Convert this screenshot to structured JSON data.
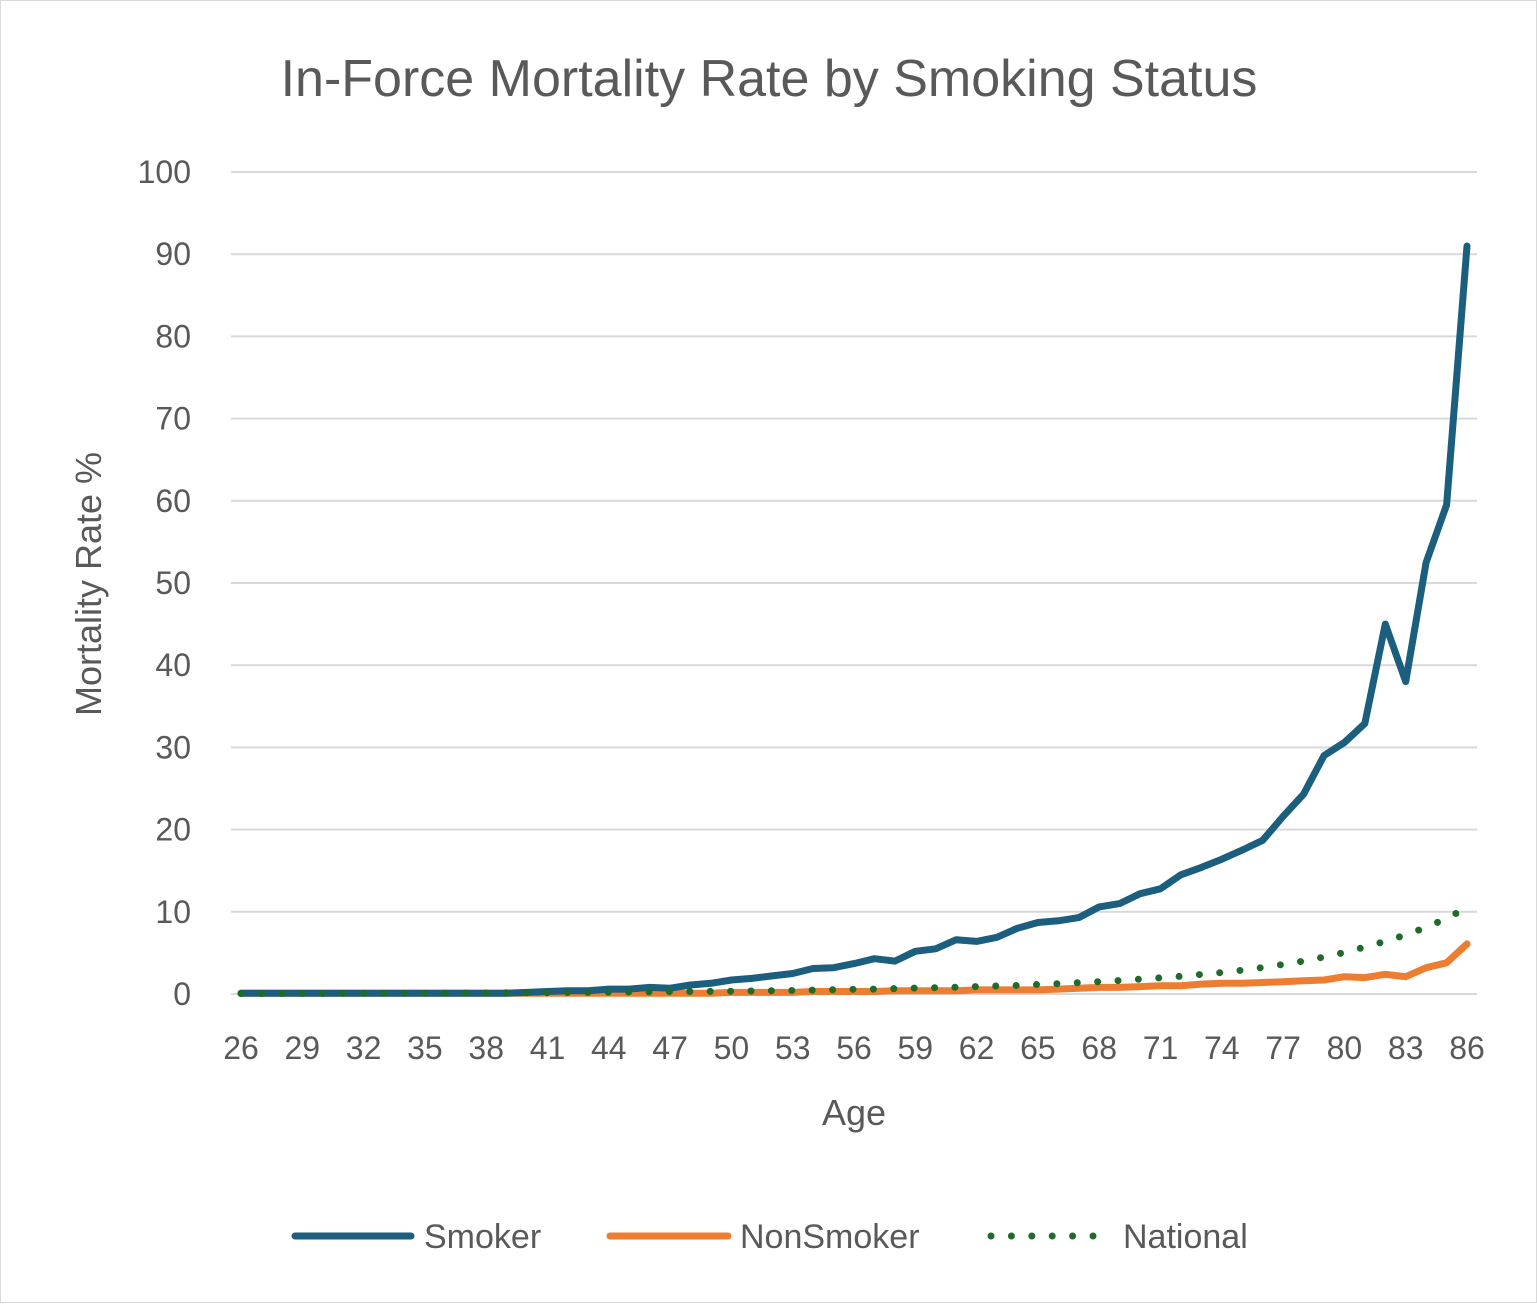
{
  "chart_data": {
    "type": "line",
    "title": "In-Force Mortality Rate by Smoking Status",
    "xlabel": "Age",
    "ylabel": "Mortality Rate %",
    "ylim": [
      0,
      100
    ],
    "yticks": [
      0,
      10,
      20,
      30,
      40,
      50,
      60,
      70,
      80,
      90,
      100
    ],
    "xticks": [
      26,
      29,
      32,
      35,
      38,
      41,
      44,
      47,
      50,
      53,
      56,
      59,
      62,
      65,
      68,
      71,
      74,
      77,
      80,
      83,
      86
    ],
    "grid": true,
    "legend_position": "bottom",
    "x": [
      26,
      27,
      28,
      29,
      30,
      31,
      32,
      33,
      34,
      35,
      36,
      37,
      38,
      39,
      40,
      41,
      42,
      43,
      44,
      45,
      46,
      47,
      48,
      49,
      50,
      51,
      52,
      53,
      54,
      55,
      56,
      57,
      58,
      59,
      60,
      61,
      62,
      63,
      64,
      65,
      66,
      67,
      68,
      69,
      70,
      71,
      72,
      73,
      74,
      75,
      76,
      77,
      78,
      79,
      80,
      81,
      82,
      83,
      84,
      85,
      86
    ],
    "series": [
      {
        "name": "Smoker",
        "color": "#1b5e7e",
        "style": "solid",
        "values": [
          0.1,
          0.1,
          0.1,
          0.1,
          0.1,
          0.1,
          0.1,
          0.1,
          0.1,
          0.1,
          0.1,
          0.1,
          0.1,
          0.1,
          0.2,
          0.3,
          0.4,
          0.4,
          0.6,
          0.6,
          0.8,
          0.7,
          1.1,
          1.3,
          1.7,
          1.9,
          2.2,
          2.5,
          3.1,
          3.2,
          3.7,
          4.3,
          4.0,
          5.2,
          5.5,
          6.6,
          6.4,
          6.9,
          8.0,
          8.7,
          8.9,
          9.3,
          10.6,
          11.0,
          12.2,
          12.8,
          14.5,
          15.4,
          16.4,
          17.5,
          18.7,
          21.6,
          24.3,
          29.0,
          30.6,
          32.9,
          45.0,
          38.0,
          52.5,
          59.5,
          91.0
        ]
      },
      {
        "name": "NonSmoker",
        "color": "#ed7d31",
        "style": "solid",
        "values": [
          0.1,
          0.1,
          0.1,
          0.1,
          0.1,
          0.1,
          0.1,
          0.1,
          0.1,
          0.1,
          0.1,
          0.1,
          0.1,
          0.1,
          0.1,
          0.1,
          0.1,
          0.1,
          0.1,
          0.1,
          0.1,
          0.1,
          0.1,
          0.1,
          0.2,
          0.2,
          0.2,
          0.2,
          0.3,
          0.3,
          0.3,
          0.3,
          0.4,
          0.4,
          0.4,
          0.4,
          0.5,
          0.5,
          0.5,
          0.5,
          0.6,
          0.7,
          0.8,
          0.8,
          0.9,
          1.0,
          1.0,
          1.2,
          1.3,
          1.3,
          1.4,
          1.5,
          1.6,
          1.7,
          2.1,
          2.0,
          2.4,
          2.1,
          3.2,
          3.8,
          6.1
        ]
      },
      {
        "name": "National",
        "color": "#1e6b2a",
        "style": "dotted",
        "values": [
          0.05,
          0.06,
          0.06,
          0.07,
          0.07,
          0.08,
          0.08,
          0.09,
          0.1,
          0.1,
          0.11,
          0.12,
          0.13,
          0.14,
          0.15,
          0.17,
          0.18,
          0.2,
          0.22,
          0.24,
          0.26,
          0.28,
          0.3,
          0.32,
          0.34,
          0.37,
          0.4,
          0.43,
          0.47,
          0.52,
          0.57,
          0.6,
          0.66,
          0.72,
          0.77,
          0.83,
          0.9,
          0.97,
          1.05,
          1.15,
          1.25,
          1.37,
          1.5,
          1.64,
          1.8,
          1.97,
          2.15,
          2.38,
          2.62,
          2.9,
          3.22,
          3.6,
          4.0,
          4.5,
          5.05,
          5.7,
          6.4,
          7.2,
          8.1,
          9.2,
          10.5
        ]
      }
    ]
  }
}
